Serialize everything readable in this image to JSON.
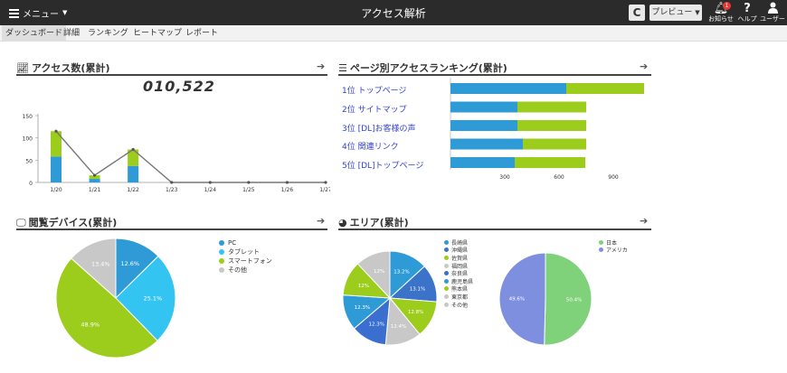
{
  "topbar": {
    "menu_label": "メニュー",
    "title": "アクセス解析",
    "refresh_glyph": "C",
    "preview_label": "プレビュー",
    "notifications_label": "お知らせ",
    "notifications_badge": "1",
    "help_label": "ヘルプ",
    "user_label": "ユーザー"
  },
  "tabs": [
    "ダッシュボード",
    "詳細",
    "ランキング",
    "ヒートマップ",
    "レポート"
  ],
  "panels": {
    "access": {
      "title": "アクセス数(累計)",
      "total": "010,522"
    },
    "ranking": {
      "title": "ページ別アクセスランキング(累計)"
    },
    "device": {
      "title": "閲覧デバイス(累計)"
    },
    "area": {
      "title": "エリア(累計)"
    }
  },
  "colors": {
    "blue": "#2f9bd6",
    "green": "#9ccc1c",
    "light_blue": "#33c4f2",
    "gray": "#c8c8c8",
    "line": "#777777",
    "header_bg": "#2b2b2b"
  },
  "chart_data": [
    {
      "type": "bar",
      "name": "access",
      "categories": [
        "1/20",
        "1/21",
        "1/22",
        "1/23",
        "1/24",
        "1/25",
        "1/26",
        "1/27"
      ],
      "series": [
        {
          "values": [
            58,
            8,
            37,
            0,
            0,
            0,
            0,
            0
          ],
          "color": "#2f9bd6"
        },
        {
          "values": [
            57,
            8,
            37,
            0,
            0,
            0,
            0,
            0
          ],
          "color": "#9ccc1c"
        }
      ],
      "line": [
        115,
        16,
        74,
        0,
        0,
        0,
        0,
        0
      ],
      "yticks": [
        0,
        50,
        100,
        150
      ],
      "ylim": [
        0,
        150
      ]
    },
    {
      "type": "bar",
      "name": "ranking",
      "orientation": "horizontal",
      "categories": [
        "1位 トップページ",
        "2位 サイトマップ",
        "3位 [DL]お客様の声",
        "4位 関連リンク",
        "5位 [DL]トップページ"
      ],
      "series": [
        {
          "values": [
            640,
            370,
            370,
            400,
            355
          ],
          "color": "#2f9bd6"
        },
        {
          "values": [
            430,
            380,
            380,
            350,
            390
          ],
          "color": "#9ccc1c"
        }
      ],
      "xticks": [
        300,
        600,
        900
      ],
      "xlim": [
        0,
        1100
      ]
    },
    {
      "type": "pie",
      "name": "device",
      "labels": [
        "PC",
        "タブレット",
        "スマートフォン",
        "その他"
      ],
      "values": [
        12.6,
        25.1,
        48.9,
        13.4
      ],
      "slice_labels": [
        "12.6%",
        "25.1%",
        "48.9%",
        "13.4%"
      ],
      "colors": [
        "#2f9bd6",
        "#33c4f2",
        "#9ccc1c",
        "#c8c8c8"
      ]
    },
    {
      "type": "pie",
      "name": "area-regions",
      "labels": [
        "長崎県",
        "沖縄県",
        "佐賀県",
        "福岡県",
        "奈良県",
        "鹿児島県",
        "熊本県",
        "東京都",
        "その他"
      ],
      "values": [
        13.2,
        13.1,
        12.8,
        12.4,
        12.3,
        12.3,
        12,
        0,
        12
      ],
      "slice_labels": [
        "13.2%",
        "13.1%",
        "12.8%",
        "12.4%",
        "12.3%",
        "12.3%",
        "12%",
        "",
        "12%"
      ],
      "colors": [
        "#2f9bd6",
        "#3b73c9",
        "#9ccc1c",
        "#c8c8c8",
        "#3a6fd0",
        "#2f9bd6",
        "#9ccc1c",
        "#c8c8c8",
        "#c8c8c8"
      ]
    },
    {
      "type": "pie",
      "name": "area-country",
      "labels": [
        "日本",
        "アメリカ"
      ],
      "values": [
        50.4,
        49.6
      ],
      "slice_labels": [
        "50.4%",
        "49.6%"
      ],
      "colors": [
        "#7fd17a",
        "#7f8fe0"
      ]
    }
  ]
}
